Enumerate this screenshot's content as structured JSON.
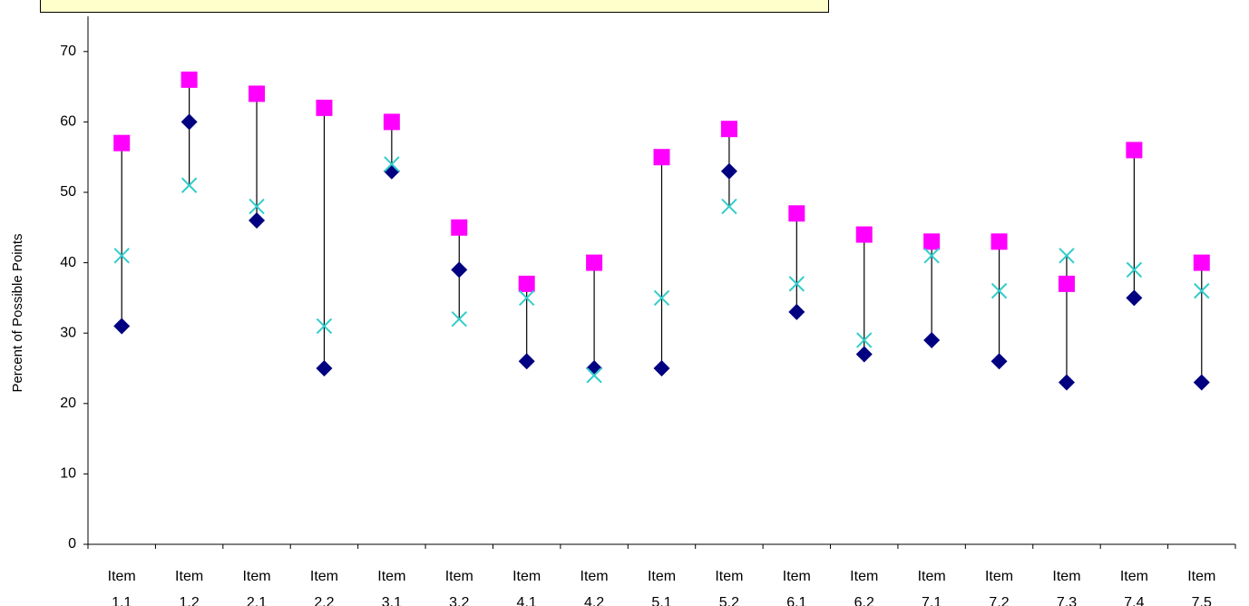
{
  "chart_data": {
    "type": "scatter",
    "title": "",
    "xlabel": "",
    "ylabel": "Percent of Possible Points",
    "ylim": [
      0,
      75
    ],
    "yticks": [
      0,
      10,
      20,
      30,
      40,
      50,
      60,
      70
    ],
    "grid": false,
    "categories": [
      [
        "Item",
        "1.1"
      ],
      [
        "Item",
        "1.2"
      ],
      [
        "Item",
        "2.1"
      ],
      [
        "Item",
        "2.2"
      ],
      [
        "Item",
        "3.1"
      ],
      [
        "Item",
        "3.2"
      ],
      [
        "Item",
        "4.1"
      ],
      [
        "Item",
        "4.2"
      ],
      [
        "Item",
        "5.1"
      ],
      [
        "Item",
        "5.2"
      ],
      [
        "Item",
        "6.1"
      ],
      [
        "Item",
        "6.2"
      ],
      [
        "Item",
        "7.1"
      ],
      [
        "Item",
        "7.2"
      ],
      [
        "Item",
        "7.3"
      ],
      [
        "Item",
        "7.4"
      ],
      [
        "Item",
        "7.5"
      ]
    ],
    "series": [
      {
        "marker": "square",
        "color": "#ff00ff",
        "values": [
          57,
          66,
          64,
          62,
          60,
          45,
          37,
          40,
          55,
          59,
          47,
          44,
          43,
          43,
          37,
          56,
          40
        ]
      },
      {
        "marker": "diamond",
        "color": "#000080",
        "values": [
          31,
          60,
          46,
          25,
          53,
          39,
          26,
          25,
          25,
          53,
          33,
          27,
          29,
          26,
          23,
          35,
          23
        ]
      },
      {
        "marker": "x",
        "color": "#33cccc",
        "values": [
          41,
          51,
          48,
          31,
          54,
          32,
          35,
          24,
          35,
          48,
          37,
          29,
          41,
          36,
          41,
          39,
          36
        ]
      }
    ],
    "range_line_color": "#000000"
  }
}
